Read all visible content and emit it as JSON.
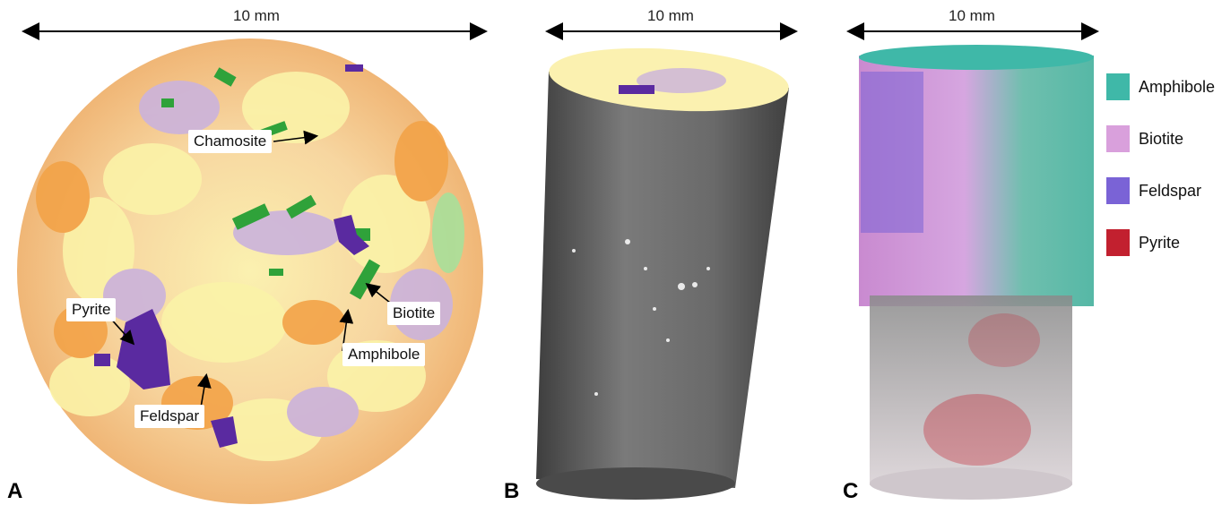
{
  "scale_bars": {
    "a": "10 mm",
    "b": "10 mm",
    "c": "10 mm"
  },
  "panels": {
    "a": "A",
    "b": "B",
    "c": "C"
  },
  "panel_a_labels": {
    "chamosite": "Chamosite",
    "pyrite": "Pyrite",
    "biotite": "Biotite",
    "amphibole": "Amphibole",
    "feldspar": "Feldspar"
  },
  "legend": [
    {
      "label": "Amphibole",
      "color": "#3fb8a8"
    },
    {
      "label": "Biotite",
      "color": "#d9a0dc"
    },
    {
      "label": "Feldspar",
      "color": "#7a63d6"
    },
    {
      "label": "Pyrite",
      "color": "#c2202f"
    }
  ],
  "colors": {
    "mineral_map_yellow": "#fbf3a8",
    "mineral_map_orange": "#f3a348",
    "mineral_map_lilac": "#cbb3dc",
    "mineral_map_green": "#2fa23a",
    "mineral_map_purple": "#5a2aa0",
    "core_gray": "#6a6a6a"
  }
}
